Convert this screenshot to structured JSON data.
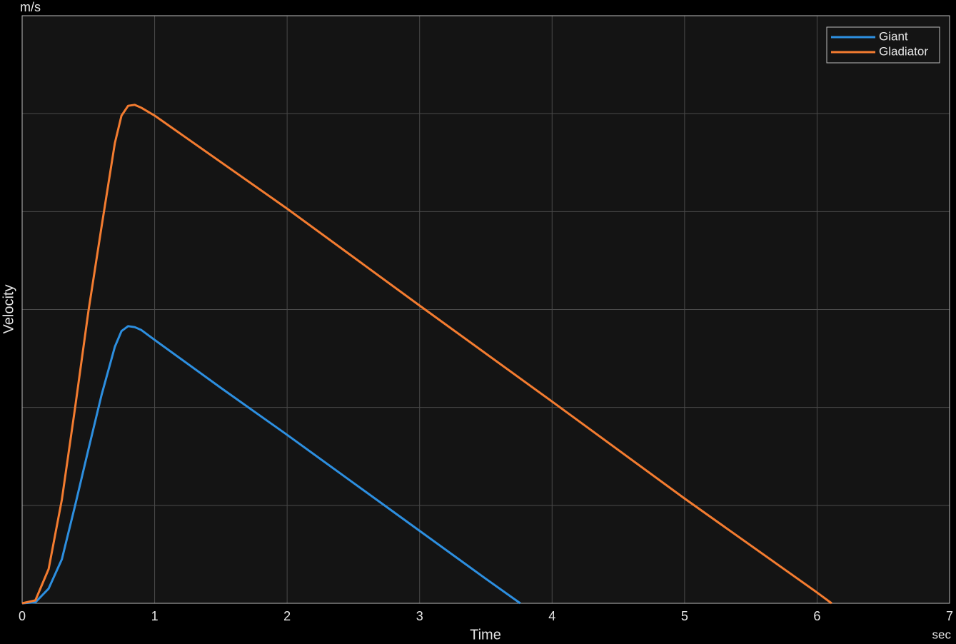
{
  "chart_data": {
    "type": "line",
    "x_label": "Time",
    "y_label": "Velocity",
    "x_unit": "sec",
    "y_unit": "m/s",
    "xlim": [
      0,
      7
    ],
    "xticks": [
      0,
      1,
      2,
      3,
      4,
      5,
      6,
      7
    ],
    "ylim": [
      0,
      6
    ],
    "ygrid": [
      1,
      2,
      3,
      4,
      5
    ],
    "grid": true,
    "legend": "upper right",
    "series": [
      {
        "name": "Giant",
        "color": "#2d8fe0",
        "x": [
          0,
          0.1,
          0.2,
          0.3,
          0.4,
          0.5,
          0.6,
          0.7,
          0.75,
          0.8,
          0.85,
          0.9,
          1,
          1.5,
          2,
          2.5,
          3,
          3.5,
          3.76
        ],
        "values": [
          0,
          0.01,
          0.15,
          0.45,
          1.0,
          1.57,
          2.13,
          2.62,
          2.78,
          2.83,
          2.82,
          2.79,
          2.69,
          2.2,
          1.72,
          1.23,
          0.74,
          0.25,
          0
        ]
      },
      {
        "name": "Gladiator",
        "color": "#f47c30",
        "x": [
          0,
          0.1,
          0.2,
          0.3,
          0.4,
          0.5,
          0.6,
          0.7,
          0.75,
          0.8,
          0.85,
          0.9,
          1,
          2,
          3,
          4,
          5,
          6,
          6.11
        ],
        "values": [
          0,
          0.03,
          0.35,
          1.06,
          2.0,
          2.98,
          3.85,
          4.7,
          4.98,
          5.08,
          5.09,
          5.06,
          4.98,
          4.03,
          3.04,
          2.06,
          1.07,
          0.11,
          0
        ]
      }
    ]
  }
}
